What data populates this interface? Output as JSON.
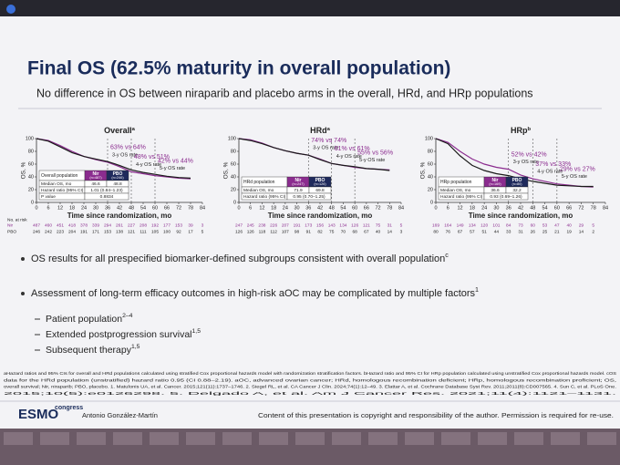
{
  "header": {
    "title": "Final OS (62.5% maturity in overall population)",
    "subtitle": "No difference in OS between niraparib and placebo arms in the overall, HRd, and HRp populations"
  },
  "y_label": "OS, %",
  "x_label": "Time since randomization, mo",
  "at_risk_label": "No. at risk",
  "panels": [
    {
      "title": "Overall",
      "title_sup": "a",
      "xlim": [
        0,
        84
      ],
      "xticks": [
        0,
        6,
        12,
        18,
        24,
        30,
        36,
        42,
        48,
        54,
        60,
        66,
        72,
        78,
        84
      ],
      "ylim": [
        0,
        100
      ],
      "yticks": [
        0,
        20,
        40,
        60,
        80,
        100
      ],
      "x": [
        0,
        6,
        12,
        18,
        24,
        30,
        36,
        42,
        48,
        54,
        60,
        66,
        72,
        78,
        84
      ],
      "series": [
        {
          "name": "Nir",
          "color": "#8b2c8f",
          "values": [
            100,
            97,
            89,
            80,
            72,
            67,
            63,
            56,
            48,
            45,
            42,
            40,
            38,
            37,
            null
          ]
        },
        {
          "name": "PBO",
          "color": "#1a1a1a",
          "values": [
            100,
            96,
            87,
            78,
            72,
            68,
            64,
            58,
            51,
            47,
            44,
            41,
            39,
            38,
            null
          ]
        }
      ],
      "landmarks": [
        36,
        48,
        60
      ],
      "annotations": [
        {
          "rate": "63% vs 64%",
          "label": "3-y OS rate"
        },
        {
          "rate": "48% vs 51%",
          "label": "4-y OS rate"
        },
        {
          "rate": "42% vs 44%",
          "label": "5-y OS rate"
        }
      ],
      "table": {
        "population": "Overall population",
        "n": [
          "(n=487)",
          "(n=246)"
        ],
        "rows": [
          [
            "Median OS, mo",
            "46.6",
            "48.8"
          ],
          [
            "Hazard ratio (95% CI)",
            "1.01 (0.84–1.23)"
          ],
          [
            "P value",
            "0.8834"
          ]
        ]
      },
      "at_risk": [
        [
          "487",
          "460",
          "451",
          "418",
          "378",
          "339",
          "294",
          "261",
          "227",
          "208",
          "192",
          "177",
          "153",
          "39",
          "3"
        ],
        [
          "246",
          "242",
          "223",
          "204",
          "191",
          "171",
          "153",
          "138",
          "121",
          "111",
          "105",
          "100",
          "92",
          "17",
          "5"
        ]
      ]
    },
    {
      "title": "HRd",
      "title_sup": "a",
      "xlim": [
        0,
        84
      ],
      "xticks": [
        0,
        6,
        12,
        18,
        24,
        30,
        36,
        42,
        48,
        54,
        60,
        66,
        72,
        78,
        84
      ],
      "ylim": [
        0,
        100
      ],
      "yticks": [
        0,
        20,
        40,
        60,
        80,
        100
      ],
      "x": [
        0,
        6,
        12,
        18,
        24,
        30,
        36,
        42,
        48,
        54,
        60,
        66,
        72,
        78,
        84
      ],
      "series": [
        {
          "name": "Nir",
          "color": "#8b2c8f",
          "values": [
            100,
            98,
            93,
            86,
            81,
            77,
            74,
            68,
            61,
            58,
            55,
            53,
            52,
            51,
            null
          ]
        },
        {
          "name": "PBO",
          "color": "#1a1a1a",
          "values": [
            100,
            97,
            92,
            86,
            81,
            77,
            74,
            67,
            61,
            58,
            56,
            53,
            52,
            50,
            null
          ]
        }
      ],
      "landmarks": [
        36,
        48,
        60
      ],
      "annotations": [
        {
          "rate": "74% vs 74%",
          "label": "3-y OS rate"
        },
        {
          "rate": "61% vs 61%",
          "label": "4-y OS rate"
        },
        {
          "rate": "55% vs 56%",
          "label": "5-y OS rate"
        }
      ],
      "table": {
        "population": "HRd population",
        "n": [
          "(n=247)",
          "(n=126)"
        ],
        "rows": [
          [
            "Median OS, mo",
            "71.9",
            "69.8"
          ],
          [
            "Hazard ratio (95% CI)",
            "0.95 (0.70–1.25)"
          ]
        ]
      },
      "at_risk": [
        [
          "247",
          "245",
          "238",
          "226",
          "207",
          "191",
          "173",
          "156",
          "143",
          "134",
          "126",
          "121",
          "75",
          "31",
          "5"
        ],
        [
          "126",
          "126",
          "118",
          "112",
          "107",
          "98",
          "91",
          "82",
          "75",
          "70",
          "68",
          "67",
          "40",
          "14",
          "3"
        ]
      ]
    },
    {
      "title": "HRp",
      "title_sup": "b",
      "xlim": [
        0,
        84
      ],
      "xticks": [
        0,
        6,
        12,
        18,
        24,
        30,
        36,
        42,
        48,
        54,
        60,
        66,
        72,
        78,
        84
      ],
      "ylim": [
        0,
        100
      ],
      "yticks": [
        0,
        20,
        40,
        60,
        80,
        100
      ],
      "x": [
        0,
        6,
        12,
        18,
        24,
        30,
        36,
        42,
        48,
        54,
        60,
        66,
        72,
        78,
        84
      ],
      "series": [
        {
          "name": "Nir",
          "color": "#8b2c8f",
          "values": [
            100,
            94,
            80,
            68,
            60,
            55,
            52,
            43,
            37,
            33,
            29,
            27,
            25,
            24,
            null
          ]
        },
        {
          "name": "PBO",
          "color": "#1a1a1a",
          "values": [
            100,
            92,
            73,
            58,
            50,
            45,
            42,
            37,
            33,
            30,
            27,
            26,
            25,
            25,
            null
          ]
        }
      ],
      "landmarks": [
        36,
        48,
        60
      ],
      "annotations": [
        {
          "rate": "52% vs 42%",
          "label": "3-y OS rate"
        },
        {
          "rate": "37% vs 33%",
          "label": "4-y OS rate"
        },
        {
          "rate": "29% vs 27%",
          "label": "5-y OS rate"
        }
      ],
      "table": {
        "population": "HRp population",
        "n": [
          "(n=169)",
          "(n=80)"
        ],
        "rows": [
          [
            "Median OS, mo",
            "36.6",
            "32.2"
          ],
          [
            "Hazard ratio (95% CI)",
            "0.93 (0.69–1.26)"
          ]
        ]
      },
      "at_risk": [
        [
          "169",
          "164",
          "149",
          "134",
          "120",
          "101",
          "84",
          "73",
          "60",
          "53",
          "47",
          "40",
          "29",
          "5"
        ],
        [
          "80",
          "76",
          "67",
          "57",
          "51",
          "44",
          "33",
          "31",
          "26",
          "25",
          "21",
          "19",
          "14",
          "2"
        ]
      ]
    }
  ],
  "bullets": [
    {
      "text": "OS results for all prespecified biomarker-defined subgroups consistent with overall population",
      "sup": "c"
    },
    {
      "text": "Assessment of long-term efficacy outcomes in high-risk aOC may be complicated by multiple factors",
      "sup": "1",
      "items": [
        {
          "text": "Patient population",
          "sup": "2–4"
        },
        {
          "text": "Extended postprogression survival",
          "sup": "1,5"
        },
        {
          "text": "Subsequent therapy",
          "sup": "1,5"
        }
      ]
    }
  ],
  "footnotes": [
    "aHazard ratios and 95% CIs for overall and HRd populations calculated using stratified Cox proportional hazards model with randomization stratification factors. bHazard ratio and 95% CI for HRp population calculated using unstratified Cox proportional hazards model. cOS",
    "data for the HRd population (unstratified) hazard ratio 0.95 (CI 0.88–2.19). aOC, advanced ovarian cancer; HRd, homologous recombination deficient; HRp, homologous recombination proficient; OS,",
    "overall survival; Nir, niraparib; PBO, placebo. 1. Matulonis UA, et al. Cancer. 2015;121(11):1737–1746. 2. Siegel RL, et al. CA Cancer J Clin. 2024;74(1):12–49. 3. Elattar A, et al. Cochrane Database Syst Rev. 2011;2011(8):CD007565. 4. Sun C, et al. PLoS One.",
    "2015;10(5):e0126298. 5. Delgado A, et al. Am J Cancer Res. 2021;11(4):1121–1131."
  ],
  "footer": {
    "logo": "ESMO",
    "logo_sub": "congress",
    "author": "Antonio González-Martín",
    "copyright": "Content of this presentation is copyright and responsibility of the author. Permission is required for re-use."
  }
}
